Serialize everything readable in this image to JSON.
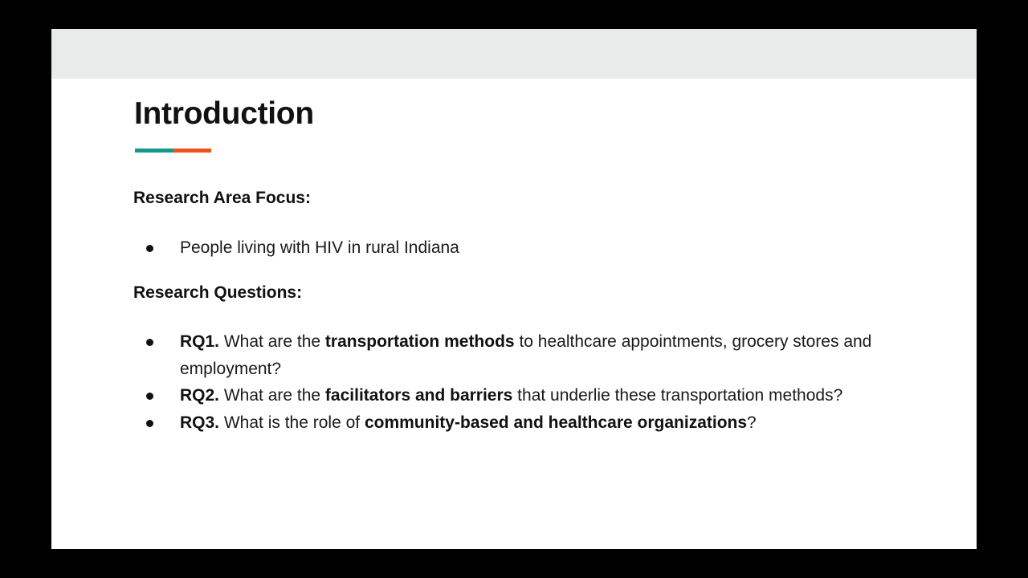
{
  "slide": {
    "title": "Introduction",
    "accent_colors": {
      "teal": "#12998b",
      "orange": "#f1511b"
    },
    "sections": {
      "focus": {
        "heading": "Research Area Focus:",
        "items": [
          {
            "text": "People living with HIV in rural Indiana"
          }
        ]
      },
      "questions": {
        "heading": "Research Questions:",
        "items": [
          {
            "label": "RQ1.",
            "pre": " What are the ",
            "emphasis": "transportation methods",
            "post": " to healthcare appointments, grocery stores and employment?"
          },
          {
            "label": "RQ2.",
            "pre": " What are the ",
            "emphasis": "facilitators and barriers",
            "post": " that underlie these transportation methods?"
          },
          {
            "label": "RQ3.",
            "pre": " What is the role of ",
            "emphasis": "community-based and healthcare organizations",
            "post": "?"
          }
        ]
      }
    }
  }
}
